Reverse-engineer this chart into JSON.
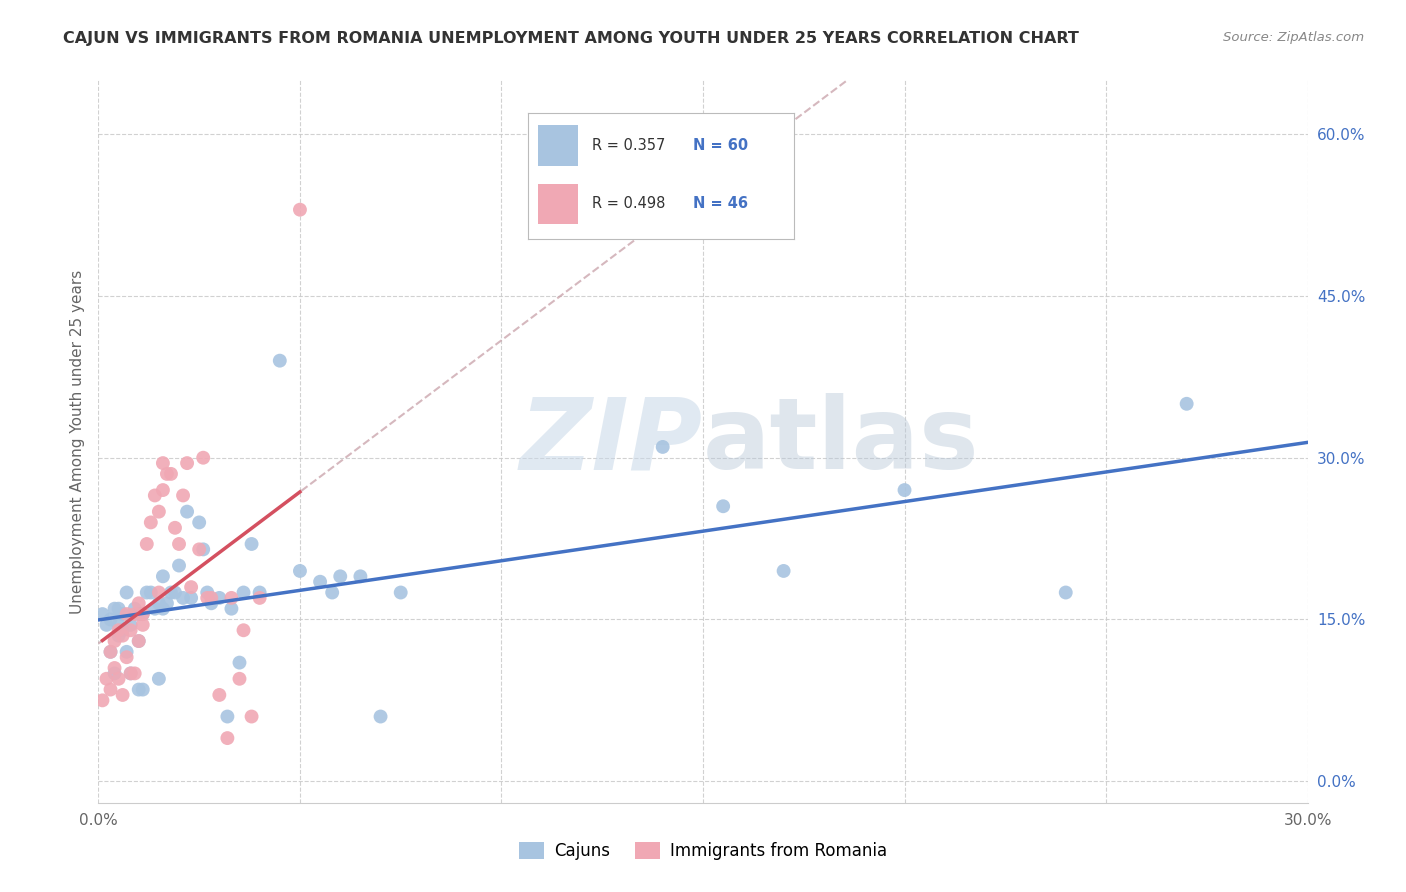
{
  "title": "CAJUN VS IMMIGRANTS FROM ROMANIA UNEMPLOYMENT AMONG YOUTH UNDER 25 YEARS CORRELATION CHART",
  "source": "Source: ZipAtlas.com",
  "ylabel": "Unemployment Among Youth under 25 years",
  "xlim": [
    0.0,
    0.3
  ],
  "ylim": [
    -0.02,
    0.65
  ],
  "r_cajun": 0.357,
  "n_cajun": 60,
  "r_romania": 0.498,
  "n_romania": 46,
  "cajun_color": "#a8c4e0",
  "romania_color": "#f0a8b4",
  "cajun_line_color": "#4472c4",
  "romania_line_color": "#d45060",
  "romania_dashed_color": "#c8a0a8",
  "watermark_zip": "ZIP",
  "watermark_atlas": "atlas",
  "background_color": "#ffffff",
  "grid_color": "#cccccc",
  "cajun_x": [
    0.001,
    0.002,
    0.003,
    0.003,
    0.004,
    0.004,
    0.005,
    0.005,
    0.005,
    0.006,
    0.006,
    0.007,
    0.007,
    0.008,
    0.008,
    0.009,
    0.01,
    0.01,
    0.01,
    0.011,
    0.011,
    0.012,
    0.013,
    0.014,
    0.015,
    0.015,
    0.016,
    0.016,
    0.017,
    0.018,
    0.019,
    0.02,
    0.021,
    0.022,
    0.023,
    0.025,
    0.026,
    0.027,
    0.028,
    0.03,
    0.032,
    0.033,
    0.035,
    0.036,
    0.038,
    0.04,
    0.045,
    0.05,
    0.055,
    0.058,
    0.06,
    0.065,
    0.07,
    0.075,
    0.14,
    0.155,
    0.17,
    0.2,
    0.24,
    0.27
  ],
  "cajun_y": [
    0.155,
    0.145,
    0.12,
    0.15,
    0.1,
    0.16,
    0.135,
    0.145,
    0.16,
    0.14,
    0.155,
    0.12,
    0.175,
    0.145,
    0.1,
    0.16,
    0.13,
    0.155,
    0.085,
    0.155,
    0.085,
    0.175,
    0.175,
    0.16,
    0.165,
    0.095,
    0.19,
    0.16,
    0.165,
    0.175,
    0.175,
    0.2,
    0.17,
    0.25,
    0.17,
    0.24,
    0.215,
    0.175,
    0.165,
    0.17,
    0.06,
    0.16,
    0.11,
    0.175,
    0.22,
    0.175,
    0.39,
    0.195,
    0.185,
    0.175,
    0.19,
    0.19,
    0.06,
    0.175,
    0.31,
    0.255,
    0.195,
    0.27,
    0.175,
    0.35
  ],
  "romania_x": [
    0.001,
    0.002,
    0.003,
    0.003,
    0.004,
    0.004,
    0.005,
    0.005,
    0.006,
    0.006,
    0.007,
    0.007,
    0.008,
    0.008,
    0.009,
    0.009,
    0.01,
    0.01,
    0.011,
    0.011,
    0.012,
    0.013,
    0.014,
    0.015,
    0.015,
    0.016,
    0.016,
    0.017,
    0.018,
    0.019,
    0.02,
    0.021,
    0.022,
    0.023,
    0.025,
    0.026,
    0.027,
    0.028,
    0.03,
    0.032,
    0.033,
    0.035,
    0.036,
    0.038,
    0.04,
    0.05
  ],
  "romania_y": [
    0.075,
    0.095,
    0.12,
    0.085,
    0.105,
    0.13,
    0.14,
    0.095,
    0.135,
    0.08,
    0.115,
    0.155,
    0.1,
    0.14,
    0.155,
    0.1,
    0.13,
    0.165,
    0.145,
    0.155,
    0.22,
    0.24,
    0.265,
    0.25,
    0.175,
    0.295,
    0.27,
    0.285,
    0.285,
    0.235,
    0.22,
    0.265,
    0.295,
    0.18,
    0.215,
    0.3,
    0.17,
    0.17,
    0.08,
    0.04,
    0.17,
    0.095,
    0.14,
    0.06,
    0.17,
    0.53
  ]
}
